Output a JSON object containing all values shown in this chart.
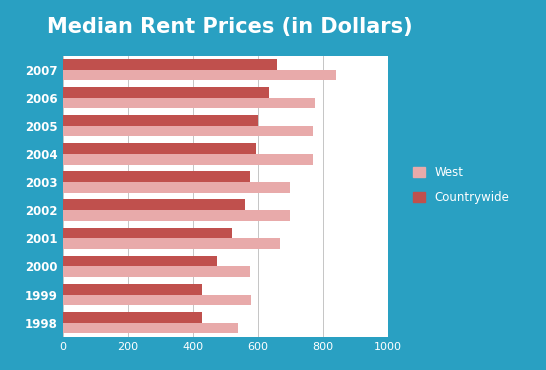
{
  "title": "Median Rent Prices (in Dollars)",
  "years": [
    "2007",
    "2006",
    "2005",
    "2004",
    "2003",
    "2002",
    "2001",
    "2000",
    "1999",
    "1998"
  ],
  "west": [
    840,
    775,
    770,
    770,
    700,
    700,
    670,
    575,
    580,
    540
  ],
  "countrywide": [
    660,
    635,
    600,
    595,
    575,
    560,
    520,
    475,
    430,
    430
  ],
  "west_color": "#E8AAAA",
  "countrywide_color": "#C0504D",
  "background_color": "#29A0C2",
  "plot_bg_color": "#FFFFFF",
  "legend_labels": [
    "West",
    "Countrywide"
  ],
  "xlim": [
    0,
    1000
  ],
  "xticks": [
    0,
    200,
    400,
    600,
    800,
    1000
  ],
  "title_fontsize": 15,
  "title_color": "#FFFFFF",
  "tick_label_color": "#FFFFFF"
}
